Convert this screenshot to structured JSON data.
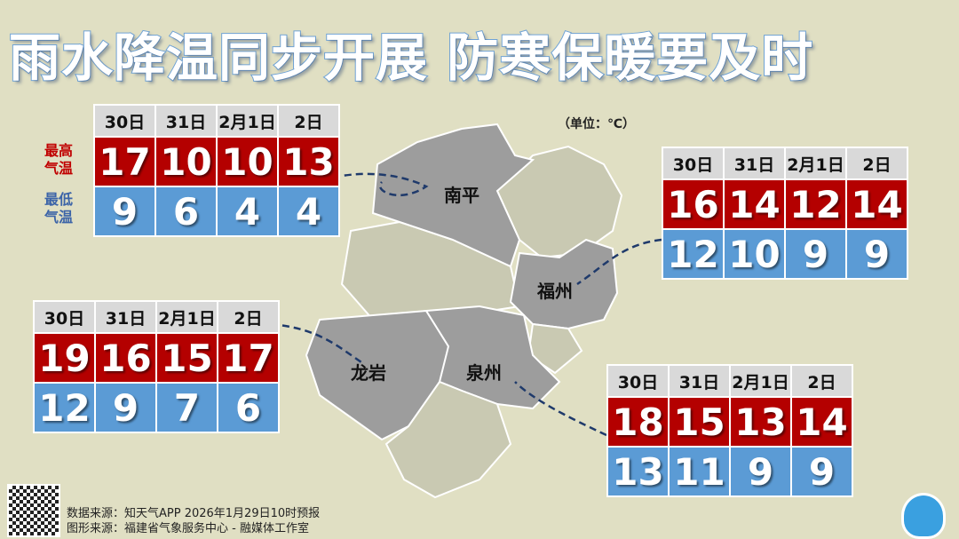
{
  "title": "雨水降温同步开展  防寒保暖要及时",
  "unit": "（单位：℃）",
  "row_labels": {
    "high": "最高气温",
    "low": "最低气温"
  },
  "colors": {
    "high": "#b40000",
    "low": "#5b9bd5",
    "header": "#d9d9d9",
    "background": "#e0dfc3"
  },
  "cities": [
    "南平",
    "福州",
    "龙岩",
    "泉州"
  ],
  "tables": [
    {
      "city": "南平",
      "dates": [
        "30日",
        "31日",
        "2月1日",
        "2日"
      ],
      "high": [
        "17",
        "10",
        "10",
        "13"
      ],
      "low": [
        "9",
        "6",
        "4",
        "4"
      ]
    },
    {
      "city": "福州",
      "dates": [
        "30日",
        "31日",
        "2月1日",
        "2日"
      ],
      "high": [
        "16",
        "14",
        "12",
        "14"
      ],
      "low": [
        "12",
        "10",
        "9",
        "9"
      ]
    },
    {
      "city": "龙岩",
      "dates": [
        "30日",
        "31日",
        "2月1日",
        "2日"
      ],
      "high": [
        "19",
        "16",
        "15",
        "17"
      ],
      "low": [
        "12",
        "9",
        "7",
        "6"
      ]
    },
    {
      "city": "泉州",
      "dates": [
        "30日",
        "31日",
        "2月1日",
        "2日"
      ],
      "high": [
        "18",
        "15",
        "13",
        "14"
      ],
      "low": [
        "13",
        "11",
        "9",
        "9"
      ]
    }
  ],
  "footer": {
    "data_source": "数据来源：知天气APP  2026年1月29日10时预报",
    "graphic_source": "图形来源：福建省气象服务中心 - 融媒体工作室"
  }
}
